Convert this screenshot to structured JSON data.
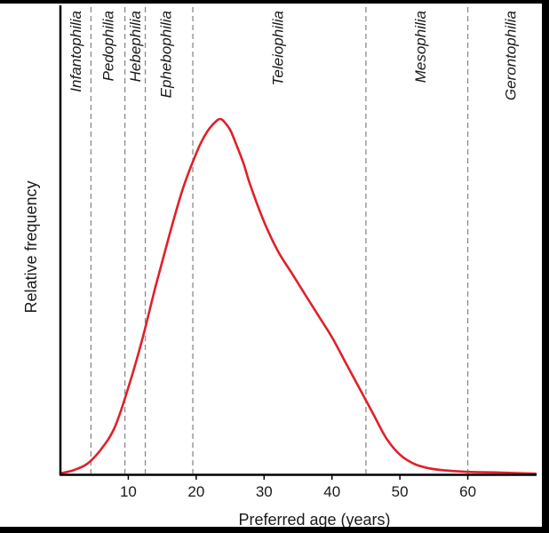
{
  "chart_data": {
    "type": "line",
    "title": "",
    "xlabel": "Preferred age (years)",
    "ylabel": "Relative frequency",
    "xlim": [
      0,
      70
    ],
    "ylim": [
      0,
      1
    ],
    "xticks": [
      10,
      20,
      30,
      40,
      50,
      60
    ],
    "grid": false,
    "series": [
      {
        "name": "Relative frequency",
        "color": "#e0202a",
        "x": [
          0,
          2,
          4,
          6,
          8,
          10,
          12,
          14,
          16,
          18,
          20,
          21,
          22,
          23,
          23.5,
          24,
          25,
          26,
          27,
          28,
          30,
          32,
          34,
          36,
          38,
          40,
          42,
          44,
          46,
          48,
          50,
          52,
          54,
          56,
          58,
          60,
          62,
          65,
          68,
          70
        ],
        "y": [
          0.003,
          0.012,
          0.03,
          0.07,
          0.13,
          0.24,
          0.37,
          0.52,
          0.66,
          0.79,
          0.89,
          0.93,
          0.96,
          0.98,
          0.985,
          0.98,
          0.955,
          0.91,
          0.86,
          0.8,
          0.7,
          0.62,
          0.56,
          0.5,
          0.44,
          0.38,
          0.31,
          0.24,
          0.17,
          0.1,
          0.055,
          0.03,
          0.018,
          0.012,
          0.009,
          0.007,
          0.006,
          0.005,
          0.003,
          0.002
        ]
      }
    ],
    "boundaries": [
      4.5,
      9.5,
      12.5,
      19.5,
      45,
      60
    ],
    "regions": [
      {
        "label": "Infantophilia",
        "x": 2.2
      },
      {
        "label": "Pedophilia",
        "x": 7
      },
      {
        "label": "Hebephilia",
        "x": 11
      },
      {
        "label": "Ephebophilia",
        "x": 15.5
      },
      {
        "label": "Teleiophilia",
        "x": 32
      },
      {
        "label": "Mesophilia",
        "x": 53
      },
      {
        "label": "Gerontophilia",
        "x": 66.3
      }
    ]
  },
  "colors": {
    "background": "#ffffff",
    "frame": "#000000",
    "curve": "#e0202a",
    "boundary": "#8a8a8a"
  }
}
